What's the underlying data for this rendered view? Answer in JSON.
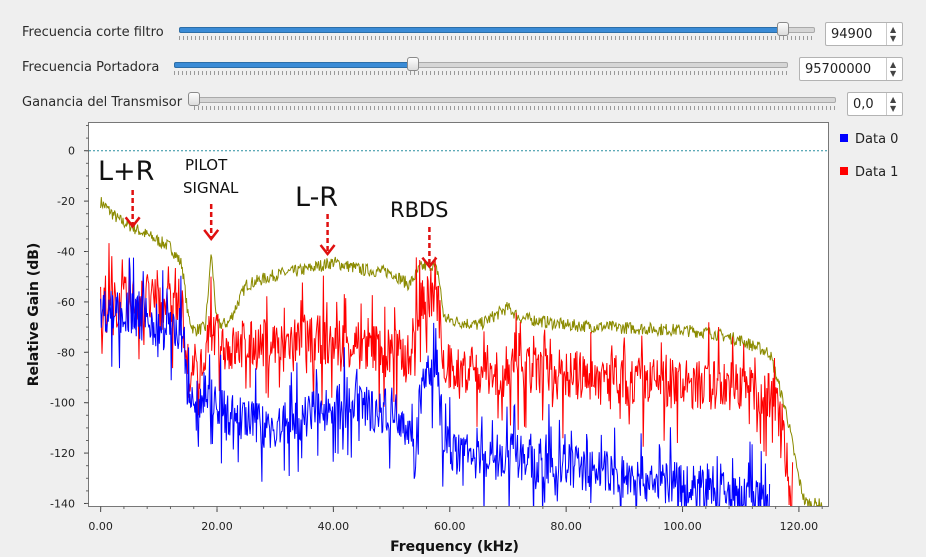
{
  "controls": [
    {
      "label": "Frecuencia corte filtro",
      "value": "94900",
      "level": 0.95
    },
    {
      "label": "Frecuencia Portadora",
      "value": "95700000",
      "level": 0.39
    },
    {
      "label": "Ganancia del Transmisor",
      "value": "0,0",
      "level": 0.0
    }
  ],
  "legend": [
    {
      "name": "Data 0",
      "color": "#0000ff"
    },
    {
      "name": "Data 1",
      "color": "#ff0000"
    }
  ],
  "annotations": [
    {
      "text": "L+R",
      "x": 5.5,
      "y": -30
    },
    {
      "text": "PILOT",
      "x": 19,
      "y": -35
    },
    {
      "text": "SIGNAL",
      "x": 19,
      "y": -35
    },
    {
      "text": "L-R",
      "x": 39,
      "y": -41
    },
    {
      "text": "RBDS",
      "x": 56.5,
      "y": -46
    }
  ],
  "chart_data": {
    "type": "line",
    "xlabel": "Frequency (kHz)",
    "ylabel": "Relative Gain (dB)",
    "xlim": [
      -2,
      125
    ],
    "ylim": [
      -141,
      11
    ],
    "x_ticks": [
      0,
      20,
      40,
      60,
      80,
      100,
      120
    ],
    "x_tick_labels": [
      "0.00",
      "20.00",
      "40.00",
      "60.00",
      "80.00",
      "100.00",
      "120.00"
    ],
    "y_ticks": [
      0,
      -20,
      -40,
      -60,
      -80,
      -100,
      -120,
      -140
    ],
    "y_tick_labels": [
      "0",
      "-20",
      "-40",
      "-60",
      "-80",
      "-100",
      "-120",
      "-140"
    ],
    "reference_line": 0,
    "series": [
      {
        "name": "Data 0",
        "color": "#0000ff",
        "x": [
          0,
          5,
          10,
          14,
          15,
          17,
          19,
          22,
          30,
          40,
          48,
          52,
          54,
          55,
          57,
          58,
          59,
          60,
          65,
          70,
          80,
          90,
          100,
          110,
          115
        ],
        "y": [
          -62,
          -64,
          -68,
          -72,
          -98,
          -103,
          -97,
          -104,
          -110,
          -100,
          -102,
          -104,
          -122,
          -95,
          -87,
          -93,
          -115,
          -118,
          -121,
          -120,
          -124,
          -128,
          -132,
          -137,
          -139
        ]
      },
      {
        "name": "Data 1",
        "color": "#ff0000",
        "x": [
          0,
          5,
          10,
          14,
          15,
          17,
          19,
          22,
          30,
          40,
          50,
          53,
          55,
          57,
          58,
          59,
          60,
          70,
          80,
          90,
          100,
          110,
          115,
          117,
          118,
          119
        ],
        "y": [
          -62,
          -58,
          -60,
          -62,
          -85,
          -88,
          -70,
          -78,
          -75,
          -74,
          -78,
          -82,
          -57,
          -55,
          -60,
          -82,
          -86,
          -86,
          -88,
          -90,
          -92,
          -92,
          -96,
          -105,
          -125,
          -141
        ]
      },
      {
        "name": "",
        "color": "#8b8b00",
        "x": [
          0,
          3,
          7,
          12,
          14,
          15,
          16,
          18,
          19,
          20,
          22,
          25,
          30,
          35,
          40,
          45,
          50,
          53,
          55,
          57,
          58,
          59,
          60,
          65,
          70,
          72,
          80,
          90,
          100,
          105,
          110,
          115,
          118,
          120,
          121,
          122,
          124
        ],
        "y": [
          -20,
          -27,
          -32,
          -38,
          -45,
          -65,
          -71,
          -70,
          -40,
          -69,
          -68,
          -53,
          -49,
          -47,
          -44,
          -47,
          -48,
          -53,
          -46,
          -45,
          -48,
          -66,
          -67,
          -69,
          -62,
          -66,
          -69,
          -70,
          -71,
          -72,
          -75,
          -80,
          -105,
          -130,
          -139,
          -140,
          -140
        ]
      }
    ]
  }
}
